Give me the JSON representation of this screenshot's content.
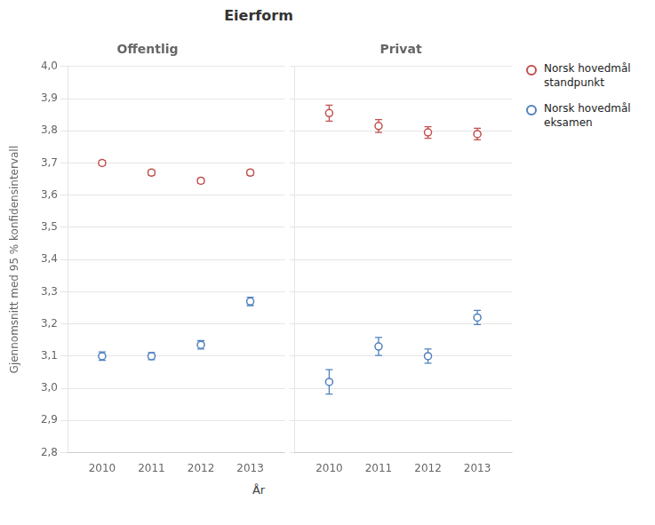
{
  "title": "Eierform",
  "xlabel": "År",
  "chart_data": [
    {
      "type": "scatter",
      "title": "Offentlig",
      "ylabel": "Gjennomsnitt med 95 % konfidensintervall",
      "x": [
        2010,
        2011,
        2012,
        2013
      ],
      "xlim": [
        2009.3,
        2013.7
      ],
      "xticks": [
        2010,
        2011,
        2012,
        2013
      ],
      "ylim": [
        2.8,
        4.0
      ],
      "yticks": [
        {
          "value": 2.8,
          "label": "2,8"
        },
        {
          "value": 2.9,
          "label": "2,9"
        },
        {
          "value": 3.0,
          "label": "3,0"
        },
        {
          "value": 3.1,
          "label": "3,1"
        },
        {
          "value": 3.2,
          "label": "3,2"
        },
        {
          "value": 3.3,
          "label": "3,3"
        },
        {
          "value": 3.4,
          "label": "3,4"
        },
        {
          "value": 3.5,
          "label": "3,5"
        },
        {
          "value": 3.6,
          "label": "3,6"
        },
        {
          "value": 3.7,
          "label": "3,7"
        },
        {
          "value": 3.8,
          "label": "3,8"
        },
        {
          "value": 3.9,
          "label": "3,9"
        },
        {
          "value": 4.0,
          "label": "4,0"
        }
      ],
      "grid": true,
      "series": [
        {
          "name": "Norsk hovedmål\nstandpunkt",
          "color": "#c0504d",
          "marker": "circle",
          "values": [
            3.7,
            3.67,
            3.645,
            3.67
          ],
          "errors": [
            0.008,
            0.008,
            0.008,
            0.008
          ]
        },
        {
          "name": "Norsk hovedmål\neksamen",
          "color": "#4f81bd",
          "marker": "circle",
          "values": [
            3.1,
            3.1,
            3.135,
            3.27
          ],
          "errors": [
            0.013,
            0.011,
            0.013,
            0.013
          ]
        }
      ]
    },
    {
      "type": "scatter",
      "title": "Privat",
      "x": [
        2010,
        2011,
        2012,
        2013
      ],
      "xlim": [
        2009.3,
        2013.7
      ],
      "xticks": [
        2010,
        2011,
        2012,
        2013
      ],
      "ylim": [
        2.8,
        4.0
      ],
      "yticks": [
        {
          "value": 2.8,
          "label": "2,8"
        },
        {
          "value": 2.9,
          "label": "2,9"
        },
        {
          "value": 3.0,
          "label": "3,0"
        },
        {
          "value": 3.1,
          "label": "3,1"
        },
        {
          "value": 3.2,
          "label": "3,2"
        },
        {
          "value": 3.3,
          "label": "3,3"
        },
        {
          "value": 3.4,
          "label": "3,4"
        },
        {
          "value": 3.5,
          "label": "3,5"
        },
        {
          "value": 3.6,
          "label": "3,6"
        },
        {
          "value": 3.7,
          "label": "3,7"
        },
        {
          "value": 3.8,
          "label": "3,8"
        },
        {
          "value": 3.9,
          "label": "3,9"
        },
        {
          "value": 4.0,
          "label": "4,0"
        }
      ],
      "grid": true,
      "tick_labels": "x",
      "legend": "right",
      "series": [
        {
          "name": "Norsk hovedmål\nstandpunkt",
          "color": "#c0504d",
          "marker": "circle",
          "values": [
            3.855,
            3.815,
            3.795,
            3.79
          ],
          "errors": [
            0.025,
            0.02,
            0.018,
            0.018
          ]
        },
        {
          "name": "Norsk hovedmål\neksamen",
          "color": "#4f81bd",
          "marker": "circle",
          "values": [
            3.02,
            3.13,
            3.1,
            3.22
          ],
          "errors": [
            0.038,
            0.028,
            0.022,
            0.022
          ]
        }
      ]
    }
  ]
}
